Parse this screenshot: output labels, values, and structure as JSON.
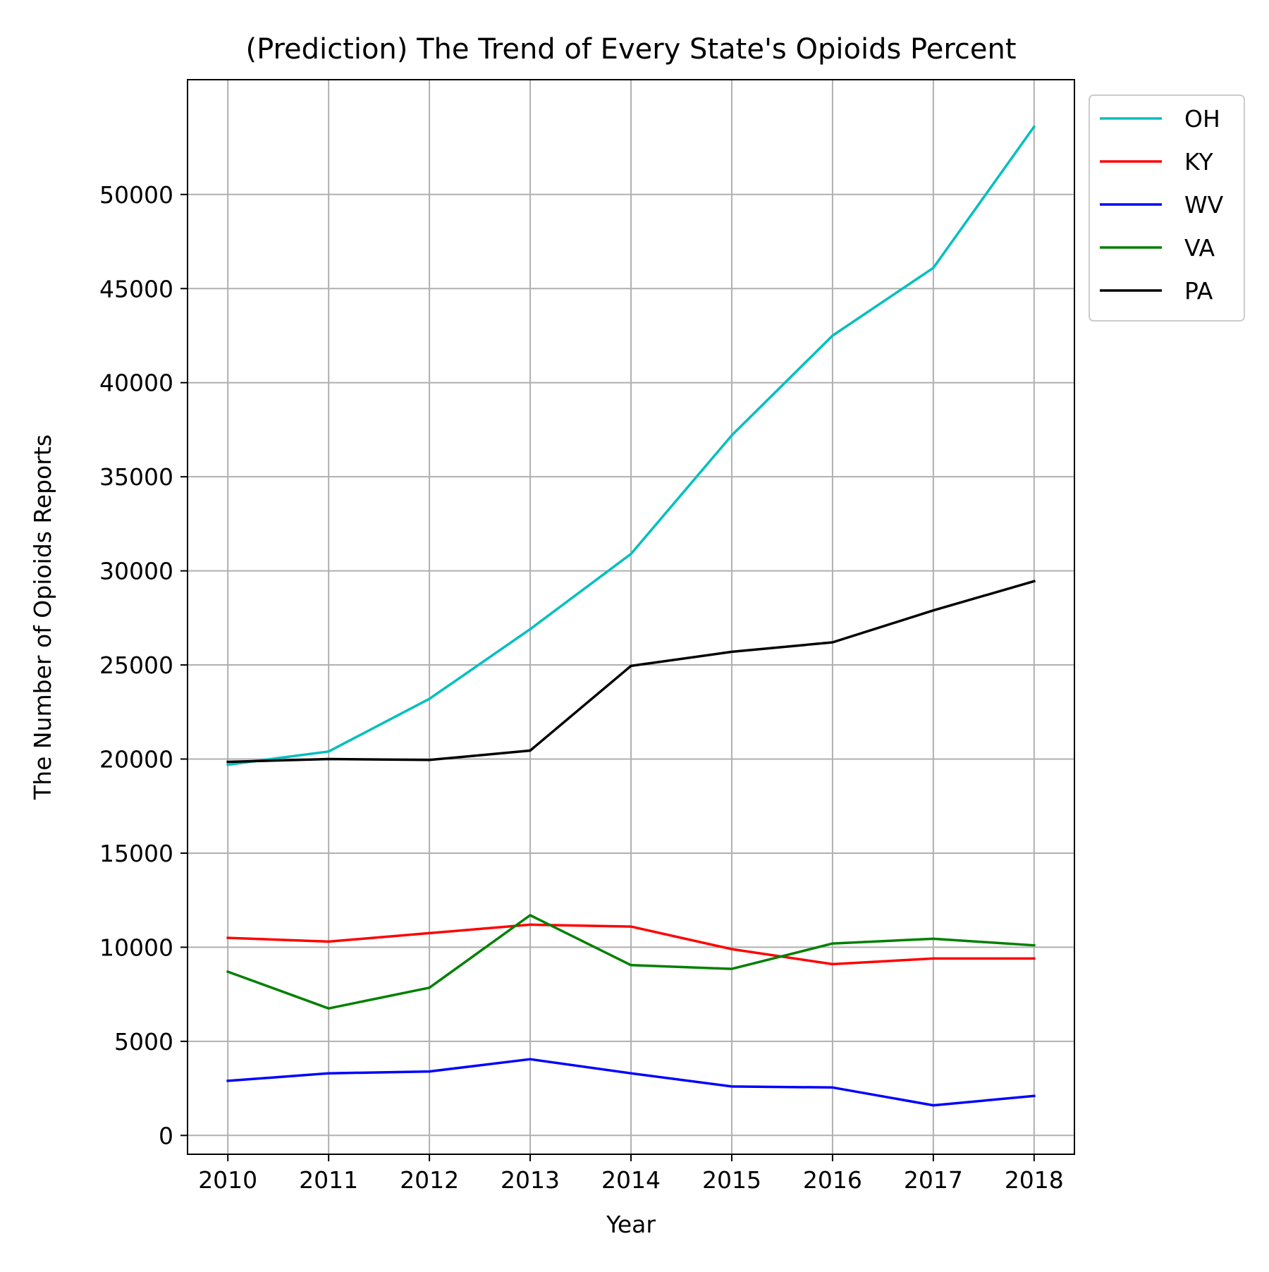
{
  "chart_data": {
    "type": "line",
    "title": "(Prediction) The Trend of Every State's Opioids Percent",
    "xlabel": "Year",
    "ylabel": "The Number of Opioids Reports",
    "x": [
      2010,
      2011,
      2012,
      2013,
      2014,
      2015,
      2016,
      2017,
      2018
    ],
    "x_tick_labels": [
      "2010",
      "2011",
      "2012",
      "2013",
      "2014",
      "2015",
      "2016",
      "2017",
      "2018"
    ],
    "xlim": [
      2009.6,
      2018.4
    ],
    "y_ticks": [
      0,
      5000,
      10000,
      15000,
      20000,
      25000,
      30000,
      35000,
      40000,
      45000,
      50000
    ],
    "y_tick_labels": [
      "0",
      "5000",
      "10000",
      "15000",
      "20000",
      "25000",
      "30000",
      "35000",
      "40000",
      "45000",
      "50000"
    ],
    "ylim": [
      -1000,
      56100
    ],
    "grid": true,
    "legend_position": "outside-top-right",
    "series": [
      {
        "name": "OH",
        "color": "#00bfbf",
        "values": [
          19700,
          20400,
          23200,
          26900,
          30900,
          37200,
          42500,
          46100,
          53600
        ]
      },
      {
        "name": "KY",
        "color": "#ff0000",
        "values": [
          10500,
          10300,
          10750,
          11200,
          11100,
          9900,
          9100,
          9400,
          9400
        ]
      },
      {
        "name": "WV",
        "color": "#0000ff",
        "values": [
          2900,
          3300,
          3400,
          4050,
          3300,
          2600,
          2550,
          1600,
          2100
        ]
      },
      {
        "name": "VA",
        "color": "#008000",
        "values": [
          8700,
          6750,
          7850,
          11700,
          9050,
          8850,
          10200,
          10450,
          10100
        ]
      },
      {
        "name": "PA",
        "color": "#000000",
        "values": [
          19850,
          20000,
          19950,
          20450,
          24950,
          25700,
          26200,
          27900,
          29450
        ]
      }
    ]
  }
}
